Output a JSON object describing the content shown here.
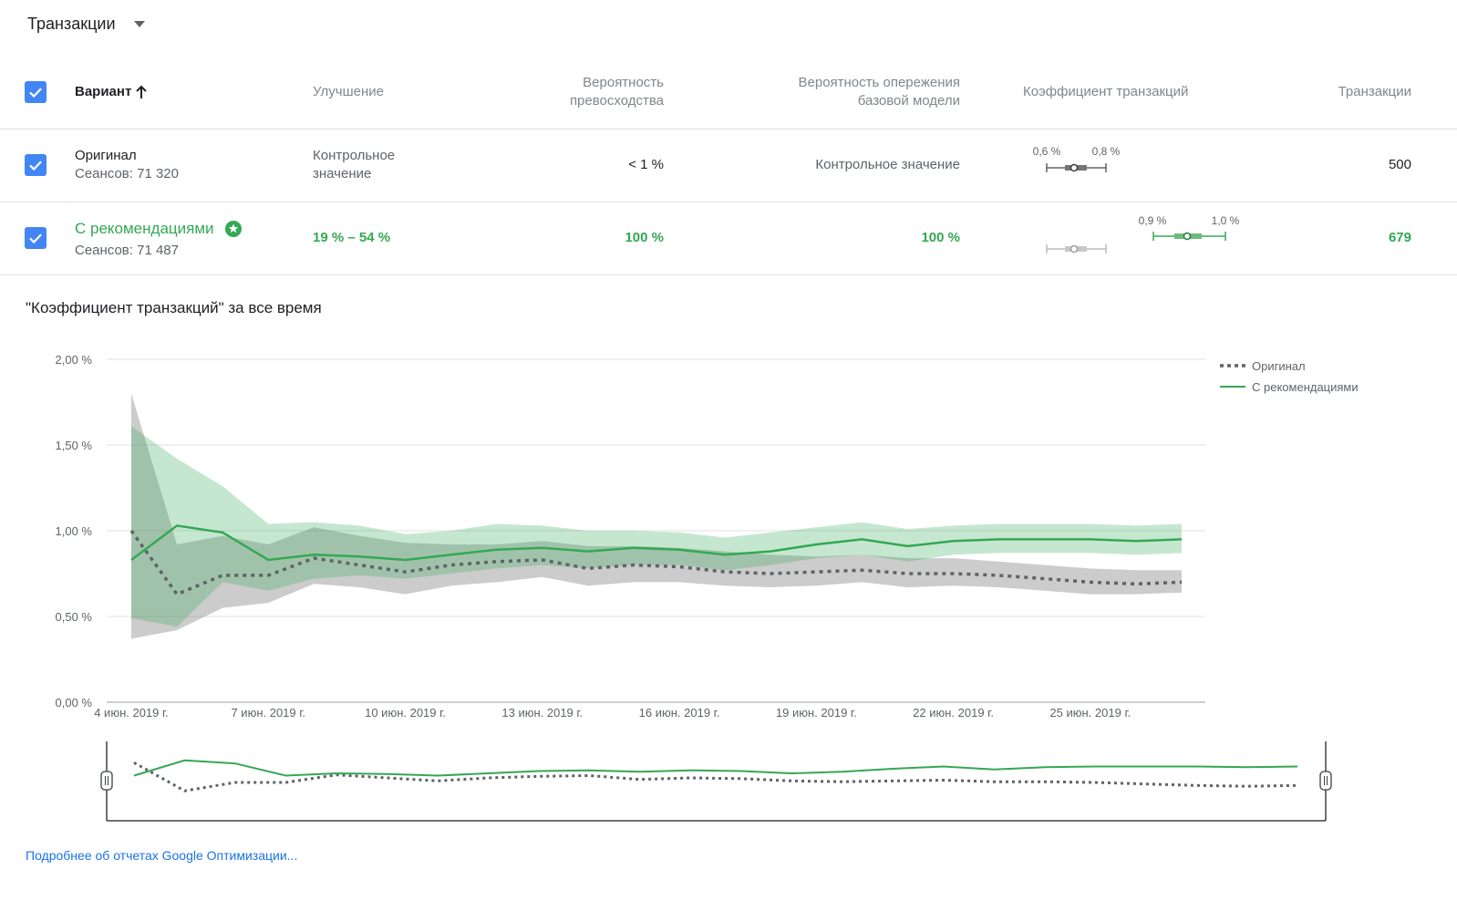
{
  "metric_selector": {
    "label": "Транзакции"
  },
  "table": {
    "headers": {
      "variant": "Вариант",
      "improvement": "Улучшение",
      "prob_best_l1": "Вероятность",
      "prob_best_l2": "превосходства",
      "prob_beat_l1": "Вероятность опережения",
      "prob_beat_l2": "базовой модели",
      "rate": "Коэффициент транзакций",
      "transactions": "Транзакции"
    },
    "rows": [
      {
        "name": "Оригинал",
        "sessions": "Сеансов: 71 320",
        "improvement_l1": "Контрольное",
        "improvement_l2": "значение",
        "prob_best": "< 1 %",
        "prob_beat": "Контрольное значение",
        "ci_low": "0,6 %",
        "ci_high": "0,8 %",
        "transactions": "500"
      },
      {
        "name": "С рекомендациями",
        "sessions": "Сеансов: 71 487",
        "improvement": "19 % – 54 %",
        "prob_best": "100 %",
        "prob_beat": "100 %",
        "ci_low": "0,9 %",
        "ci_high": "1,0 %",
        "transactions": "679"
      }
    ]
  },
  "chart_section_title": "\"Коэффициент транзакций\" за все время",
  "chart_data": {
    "type": "line",
    "ylim": [
      0,
      2
    ],
    "y_ticks": [
      "2,00 %",
      "1,50 %",
      "1,00 %",
      "0,50 %",
      "0,00 %"
    ],
    "x_ticks": [
      "4 июн. 2019 г.",
      "7 июн. 2019 г.",
      "10 июн. 2019 г.",
      "13 июн. 2019 г.",
      "16 июн. 2019 г.",
      "19 июн. 2019 г.",
      "22 июн. 2019 г.",
      "25 июн. 2019 г."
    ],
    "x": [
      "2019-06-04",
      "2019-06-05",
      "2019-06-06",
      "2019-06-07",
      "2019-06-08",
      "2019-06-09",
      "2019-06-10",
      "2019-06-11",
      "2019-06-12",
      "2019-06-13",
      "2019-06-14",
      "2019-06-15",
      "2019-06-16",
      "2019-06-17",
      "2019-06-18",
      "2019-06-19",
      "2019-06-20",
      "2019-06-21",
      "2019-06-22",
      "2019-06-23",
      "2019-06-24",
      "2019-06-25",
      "2019-06-26",
      "2019-06-27"
    ],
    "series": [
      {
        "name": "Оригинал",
        "color": "#5f6368",
        "style": "dotted",
        "values": [
          1.0,
          0.63,
          0.74,
          0.74,
          0.84,
          0.8,
          0.76,
          0.8,
          0.82,
          0.83,
          0.78,
          0.8,
          0.79,
          0.76,
          0.75,
          0.76,
          0.77,
          0.75,
          0.75,
          0.74,
          0.72,
          0.7,
          0.69,
          0.7
        ],
        "lower": [
          0.37,
          0.42,
          0.55,
          0.58,
          0.69,
          0.67,
          0.63,
          0.68,
          0.7,
          0.73,
          0.68,
          0.7,
          0.7,
          0.68,
          0.67,
          0.68,
          0.7,
          0.67,
          0.68,
          0.67,
          0.65,
          0.63,
          0.63,
          0.64
        ],
        "upper": [
          1.8,
          0.92,
          0.97,
          0.92,
          1.02,
          0.97,
          0.93,
          0.92,
          0.92,
          0.94,
          0.91,
          0.91,
          0.9,
          0.88,
          0.86,
          0.85,
          0.86,
          0.84,
          0.84,
          0.82,
          0.8,
          0.78,
          0.77,
          0.77
        ]
      },
      {
        "name": "С рекомендациями",
        "color": "#34a853",
        "style": "solid",
        "values": [
          0.83,
          1.03,
          0.99,
          0.83,
          0.86,
          0.85,
          0.83,
          0.86,
          0.89,
          0.9,
          0.88,
          0.9,
          0.89,
          0.86,
          0.88,
          0.92,
          0.95,
          0.91,
          0.94,
          0.95,
          0.95,
          0.95,
          0.94,
          0.95
        ],
        "lower": [
          0.49,
          0.44,
          0.7,
          0.65,
          0.72,
          0.74,
          0.72,
          0.75,
          0.78,
          0.8,
          0.78,
          0.8,
          0.8,
          0.77,
          0.8,
          0.84,
          0.86,
          0.82,
          0.86,
          0.87,
          0.87,
          0.87,
          0.86,
          0.87
        ],
        "upper": [
          1.61,
          1.42,
          1.26,
          1.04,
          1.05,
          1.03,
          0.98,
          1.0,
          1.04,
          1.03,
          1.0,
          1.0,
          0.99,
          0.96,
          0.99,
          1.02,
          1.05,
          1.01,
          1.03,
          1.04,
          1.04,
          1.04,
          1.03,
          1.04
        ]
      }
    ],
    "grid": true,
    "legend_position": "right"
  },
  "footer_link": "Подробнее об отчетах Google Оптимизации..."
}
